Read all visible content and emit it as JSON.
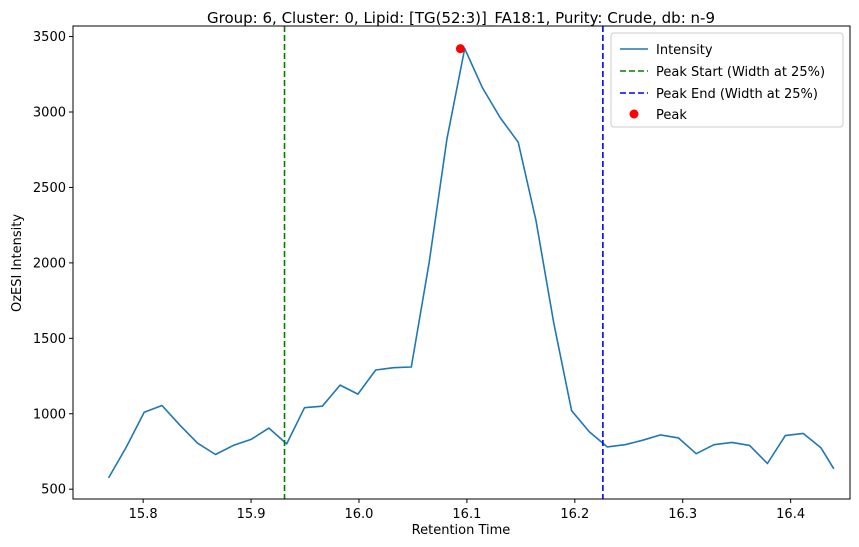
{
  "chart_data": {
    "type": "line",
    "title": "Group: 6, Cluster: 0, Lipid: [TG(52:3)]_FA18:1, Purity: Crude, db: n-9",
    "xlabel": "Retention Time",
    "ylabel": "OzESI Intensity",
    "xlim": [
      15.735,
      16.455
    ],
    "ylim": [
      435,
      3570
    ],
    "xticks": [
      15.8,
      15.9,
      16.0,
      16.1,
      16.2,
      16.3,
      16.4
    ],
    "xtick_labels": [
      "15.8",
      "15.9",
      "16.0",
      "16.1",
      "16.2",
      "16.3",
      "16.4"
    ],
    "yticks": [
      500,
      1000,
      1500,
      2000,
      2500,
      3000,
      3500
    ],
    "ytick_labels": [
      "500",
      "1000",
      "1500",
      "2000",
      "2500",
      "3000",
      "3500"
    ],
    "grid": false,
    "legend_position": "top-right",
    "series": [
      {
        "name": "Intensity",
        "color": "#1f77b4",
        "x": [
          15.768,
          15.7845,
          15.801,
          15.8175,
          15.834,
          15.8505,
          15.867,
          15.8835,
          15.9,
          15.9165,
          15.933,
          15.9495,
          15.966,
          15.9825,
          15.999,
          16.0155,
          16.032,
          16.0485,
          16.065,
          16.0815,
          16.098,
          16.1145,
          16.131,
          16.1475,
          16.164,
          16.1805,
          16.197,
          16.2135,
          16.23,
          16.2465,
          16.263,
          16.2795,
          16.296,
          16.3125,
          16.329,
          16.3455,
          16.362,
          16.3785,
          16.395,
          16.4115,
          16.428,
          16.44
        ],
        "y": [
          575,
          780,
          1010,
          1055,
          925,
          805,
          730,
          790,
          830,
          905,
          800,
          1040,
          1050,
          1190,
          1130,
          1290,
          1305,
          1310,
          2000,
          2820,
          3420,
          3160,
          2960,
          2800,
          2280,
          1600,
          1020,
          880,
          780,
          795,
          825,
          860,
          840,
          735,
          795,
          810,
          790,
          670,
          855,
          870,
          775,
          635
        ]
      }
    ],
    "vlines": [
      {
        "name": "Peak Start (Width at 25%)",
        "x": 15.931,
        "color": "#008000",
        "style": "dashed"
      },
      {
        "name": "Peak End (Width at 25%)",
        "x": 16.226,
        "color": "#0000ff",
        "style": "dashed"
      }
    ],
    "points": [
      {
        "name": "Peak",
        "x": 16.094,
        "y": 3420,
        "color": "#ff0000"
      }
    ]
  }
}
